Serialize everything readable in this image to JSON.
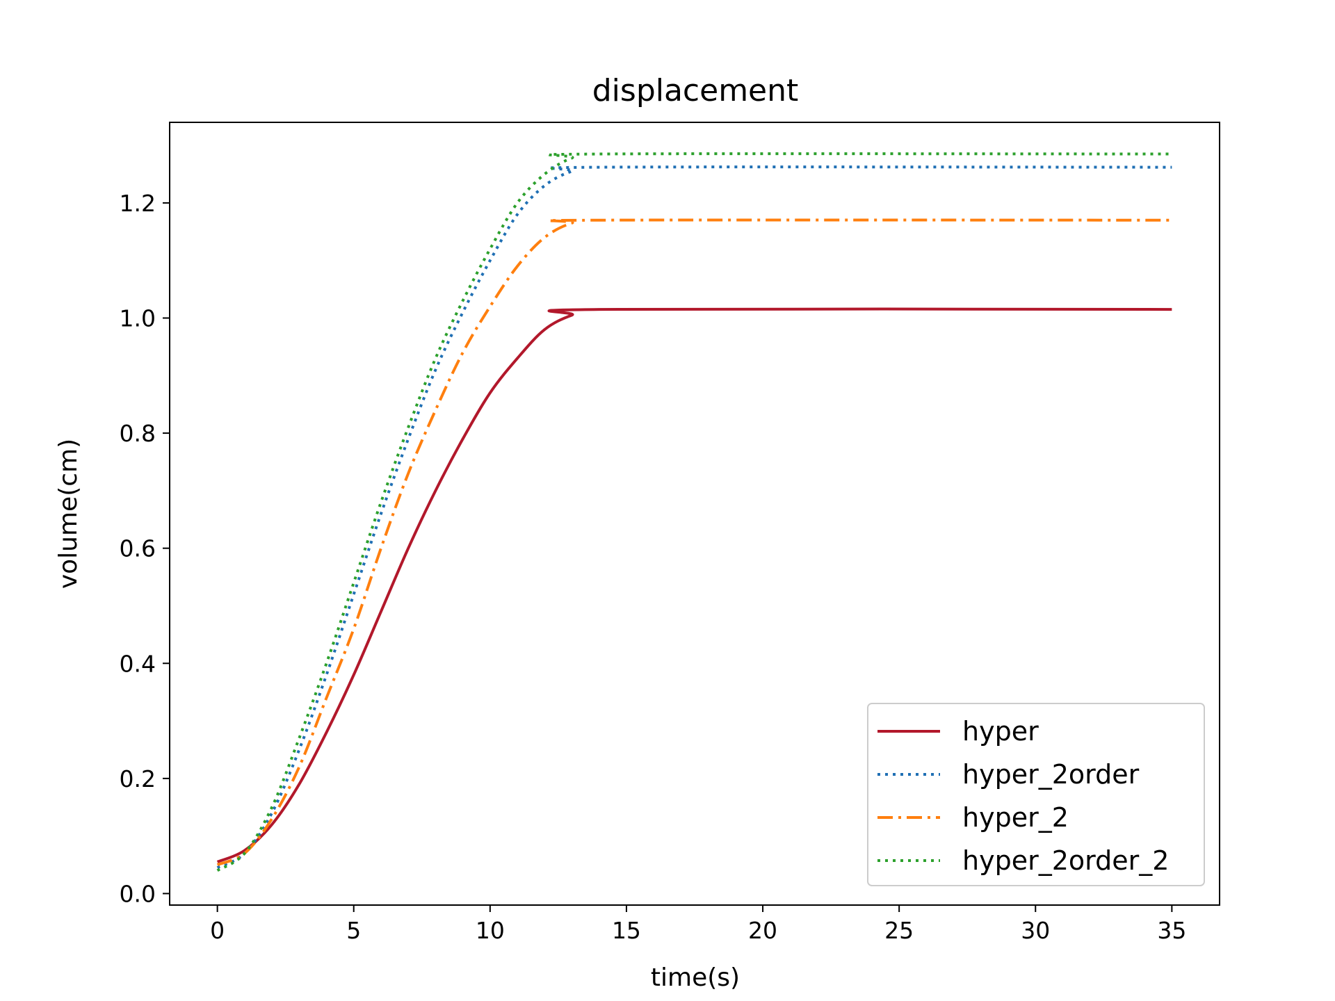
{
  "chart_data": {
    "type": "line",
    "title": "displacement",
    "xlabel": "time(s)",
    "ylabel": "volume(cm)",
    "xlim": [
      -1.75,
      36.75
    ],
    "ylim": [
      -0.02,
      1.34
    ],
    "xticks": [
      0,
      5,
      10,
      15,
      20,
      25,
      30,
      35
    ],
    "yticks": [
      0.0,
      0.2,
      0.4,
      0.6,
      0.8,
      1.0,
      1.2
    ],
    "xtick_labels": [
      "0",
      "5",
      "10",
      "15",
      "20",
      "25",
      "30",
      "35"
    ],
    "ytick_labels": [
      "0.0",
      "0.2",
      "0.4",
      "0.6",
      "0.8",
      "1.0",
      "1.2"
    ],
    "grid": false,
    "legend_position": "lower right",
    "series": [
      {
        "name": "hyper",
        "color": "#b2182b",
        "style": "solid",
        "x": [
          0,
          1,
          2,
          3,
          4,
          5,
          6,
          7,
          8,
          9,
          10,
          11,
          12,
          13,
          14,
          35
        ],
        "y": [
          0.055,
          0.075,
          0.12,
          0.19,
          0.28,
          0.38,
          0.49,
          0.6,
          0.7,
          0.79,
          0.87,
          0.93,
          0.98,
          1.005,
          1.015,
          1.015
        ]
      },
      {
        "name": "hyper_2order",
        "color": "#1f6fb4",
        "style": "dotted",
        "x": [
          0,
          1,
          2,
          3,
          4,
          5,
          6,
          7,
          8,
          9,
          10,
          11,
          12,
          13,
          14,
          35
        ],
        "y": [
          0.045,
          0.07,
          0.14,
          0.25,
          0.38,
          0.52,
          0.66,
          0.79,
          0.91,
          1.01,
          1.1,
          1.18,
          1.23,
          1.255,
          1.262,
          1.262
        ]
      },
      {
        "name": "hyper_2",
        "color": "#ff7f0e",
        "style": "dashdot",
        "x": [
          0,
          1,
          2,
          3,
          4,
          5,
          6,
          7,
          8,
          9,
          10,
          11,
          12,
          13,
          14,
          35
        ],
        "y": [
          0.05,
          0.07,
          0.13,
          0.22,
          0.34,
          0.46,
          0.6,
          0.73,
          0.84,
          0.94,
          1.02,
          1.09,
          1.14,
          1.165,
          1.17,
          1.17
        ]
      },
      {
        "name": "hyper_2order_2",
        "color": "#2ca02c",
        "style": "dotted",
        "x": [
          0,
          1,
          2,
          3,
          4,
          5,
          6,
          7,
          8,
          9,
          10,
          11,
          12,
          13,
          14,
          35
        ],
        "y": [
          0.04,
          0.07,
          0.15,
          0.27,
          0.4,
          0.54,
          0.68,
          0.81,
          0.93,
          1.03,
          1.12,
          1.2,
          1.25,
          1.278,
          1.285,
          1.285
        ]
      }
    ]
  }
}
